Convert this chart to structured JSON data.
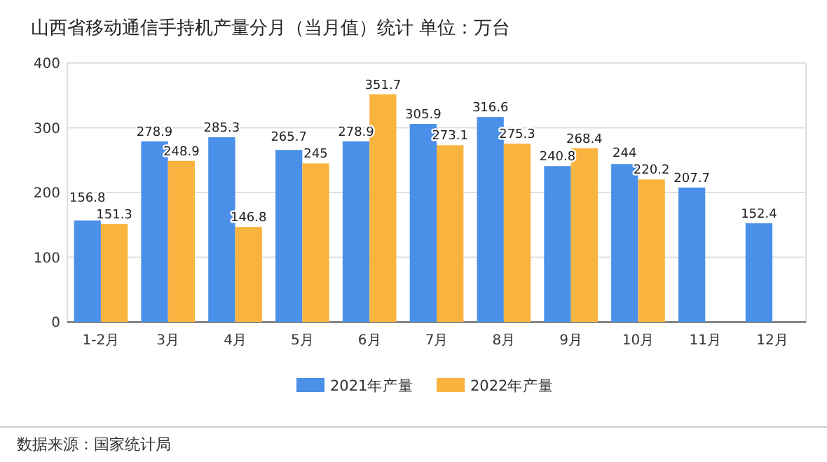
{
  "chart_data": {
    "type": "bar",
    "title": "山西省移动通信手持机产量分月（当月值）统计  单位：万台",
    "categories": [
      "1-2月",
      "3月",
      "4月",
      "5月",
      "6月",
      "7月",
      "8月",
      "9月",
      "10月",
      "11月",
      "12月"
    ],
    "series": [
      {
        "name": "2021年产量",
        "color": "#4a8fe8",
        "values": [
          156.8,
          278.9,
          285.3,
          265.7,
          278.9,
          305.9,
          316.6,
          240.8,
          244,
          207.7,
          152.4
        ]
      },
      {
        "name": "2022年产量",
        "color": "#f9b43f",
        "values": [
          151.3,
          248.9,
          146.8,
          245,
          351.7,
          273.1,
          275.3,
          268.4,
          220.2,
          null,
          null
        ]
      }
    ],
    "ylim": [
      0,
      400
    ],
    "yticks": [
      0,
      100,
      200,
      300,
      400
    ],
    "grid": "y",
    "legend": "bottom",
    "data_labels": true,
    "annotations": [
      "数据来源：国家统计局"
    ]
  }
}
